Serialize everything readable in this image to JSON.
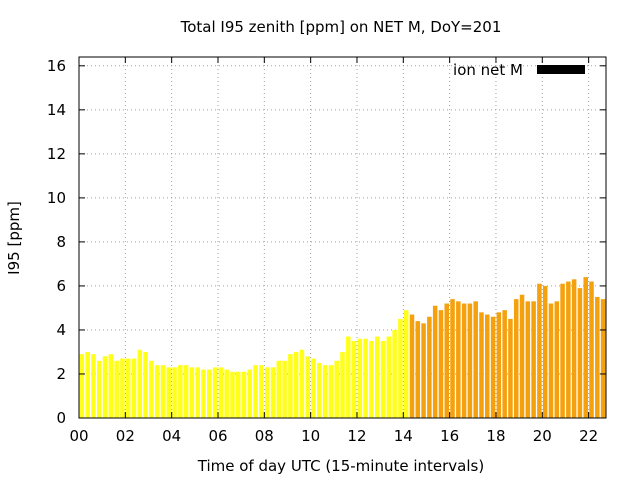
{
  "chart_data": {
    "type": "bar",
    "title": "Total I95 zenith [ppm] on NET M, DoY=201",
    "xlabel": "Time of day UTC (15-minute intervals)",
    "ylabel": "I95 [ppm]",
    "ylim": [
      0,
      16.4
    ],
    "xlim": [
      0,
      22.75
    ],
    "yticks": [
      "0",
      "2",
      "4",
      "6",
      "8",
      "10",
      "12",
      "14",
      "16"
    ],
    "xticks": [
      "00",
      "02",
      "04",
      "06",
      "08",
      "10",
      "12",
      "14",
      "16",
      "18",
      "20",
      "22"
    ],
    "grid": true,
    "legend": {
      "placement": "top-right",
      "entries": [
        {
          "name": "ion net M",
          "color": "#000000"
        }
      ]
    },
    "series": [
      {
        "name": "ion net M",
        "interval_hours": 0.25,
        "low_color": "#ffff1a",
        "high_color": "#f5a10e",
        "color_switch_hour": 14.25,
        "values": [
          2.9,
          3.0,
          2.9,
          2.6,
          2.8,
          2.9,
          2.6,
          2.7,
          2.7,
          2.7,
          3.1,
          3.0,
          2.6,
          2.4,
          2.4,
          2.3,
          2.3,
          2.4,
          2.4,
          2.3,
          2.3,
          2.2,
          2.2,
          2.3,
          2.3,
          2.2,
          2.1,
          2.1,
          2.1,
          2.2,
          2.4,
          2.4,
          2.3,
          2.3,
          2.6,
          2.6,
          2.9,
          3.0,
          3.1,
          2.8,
          2.7,
          2.5,
          2.4,
          2.4,
          2.6,
          3.0,
          3.7,
          3.5,
          3.6,
          3.6,
          3.5,
          3.7,
          3.5,
          3.7,
          4.0,
          4.5,
          4.9,
          4.7,
          4.4,
          4.3,
          4.6,
          5.1,
          4.9,
          5.2,
          5.4,
          5.3,
          5.2,
          5.2,
          5.3,
          4.8,
          4.7,
          4.6,
          4.8,
          4.9,
          4.5,
          5.4,
          5.6,
          5.3,
          5.3,
          6.1,
          6.0,
          5.2,
          5.3,
          6.1,
          6.2,
          6.3,
          5.9,
          6.4,
          6.2,
          5.5,
          5.4
        ]
      }
    ]
  }
}
